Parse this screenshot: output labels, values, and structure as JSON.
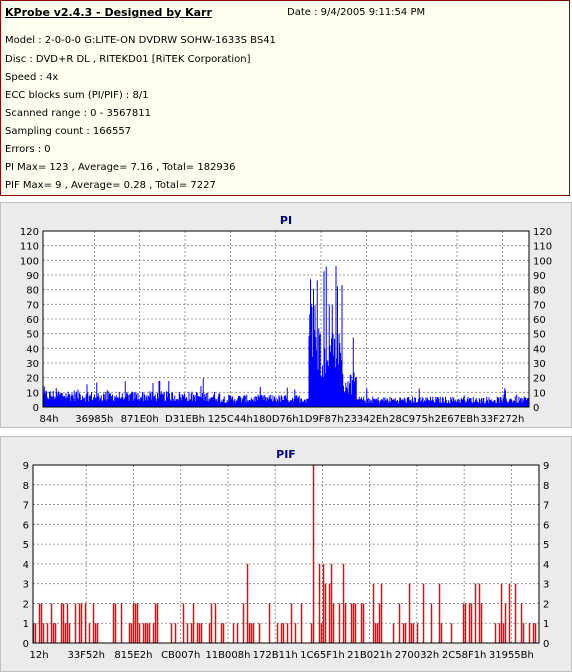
{
  "header": {
    "title": "KProbe v2.4.3 - Designed by Karr",
    "date": "Date : 9/4/2005 9:11:54 PM",
    "lines": [
      "Model : 2-0-0-0 G:LITE-ON DVDRW SOHW-1633S BS41",
      "Disc : DVD+R DL , RITEKD01 [RiTEK Corporation]",
      "Speed : 4x",
      "ECC blocks sum (PI/PIF) : 8/1",
      "Scanned range : 0 - 3567811",
      "Sampling count : 166557",
      "Errors : 0",
      "PI Max= 123 , Average= 7.16 , Total= 182936",
      "PIF Max= 9 , Average= 0.28 , Total= 7227"
    ]
  },
  "colors": {
    "pi_series": "#0000ff",
    "pif_series": "#ff0000",
    "chart_title": "#000080",
    "grid": "#808080",
    "info_border": "#8b0000"
  },
  "chart_data": [
    {
      "type": "area",
      "title": "PI",
      "xlabel": "",
      "ylabel": "",
      "ylim": [
        0,
        120
      ],
      "yticks": [
        0,
        10,
        20,
        30,
        40,
        50,
        60,
        70,
        80,
        90,
        100,
        110,
        120
      ],
      "xlim": [
        0,
        3567811
      ],
      "x_tick_labels": [
        "84h",
        "36985h",
        "871E0h",
        "D31EBh",
        "125C44h",
        "180D76h",
        "1D9F87h",
        "23342Eh",
        "28C975h",
        "2E67EBh",
        "33F272h"
      ],
      "grid": true,
      "legend": "none",
      "series": [
        {
          "values_by_segment": [
            {
              "x_range": [
                0,
                300000
              ],
              "typical": 10,
              "peak": 16
            },
            {
              "x_range": [
                300000,
                1300000
              ],
              "typical": 9,
              "peak": 20
            },
            {
              "x_range": [
                1300000,
                1950000
              ],
              "typical": 7,
              "peak": 14
            },
            {
              "x_range": [
                1950000,
                2000000
              ],
              "typical": 80,
              "peak": 123
            },
            {
              "x_range": [
                2000000,
                2200000
              ],
              "typical": 50,
              "peak": 100
            },
            {
              "x_range": [
                2200000,
                2300000
              ],
              "typical": 20,
              "peak": 55
            },
            {
              "x_range": [
                2300000,
                3567811
              ],
              "typical": 6,
              "peak": 13
            }
          ]
        }
      ]
    },
    {
      "type": "bar",
      "title": "PIF",
      "xlabel": "",
      "ylabel": "",
      "ylim": [
        0,
        9
      ],
      "yticks": [
        0,
        1,
        2,
        3,
        4,
        5,
        6,
        7,
        8,
        9
      ],
      "xlim": [
        0,
        3567811
      ],
      "x_tick_labels": [
        "12h",
        "33F52h",
        "815E2h",
        "CB007h",
        "11B008h",
        "172B11h",
        "1C65F1h",
        "21B021h",
        "270032h",
        "2C58F1h",
        "31955Bh"
      ],
      "grid": true,
      "legend": "none",
      "series": [
        {
          "values_by_segment": [
            {
              "x_range": [
                0,
                1900000
              ],
              "typical": 1,
              "peak": 2
            },
            {
              "x_range": [
                1500000,
                1600000
              ],
              "typical": 1,
              "peak": 4
            },
            {
              "x_range": [
                1950000,
                2050000
              ],
              "typical": 3,
              "peak": 9
            },
            {
              "x_range": [
                2050000,
                2300000
              ],
              "typical": 2,
              "peak": 4
            },
            {
              "x_range": [
                2300000,
                3567811
              ],
              "typical": 1,
              "peak": 3
            }
          ]
        }
      ]
    }
  ]
}
